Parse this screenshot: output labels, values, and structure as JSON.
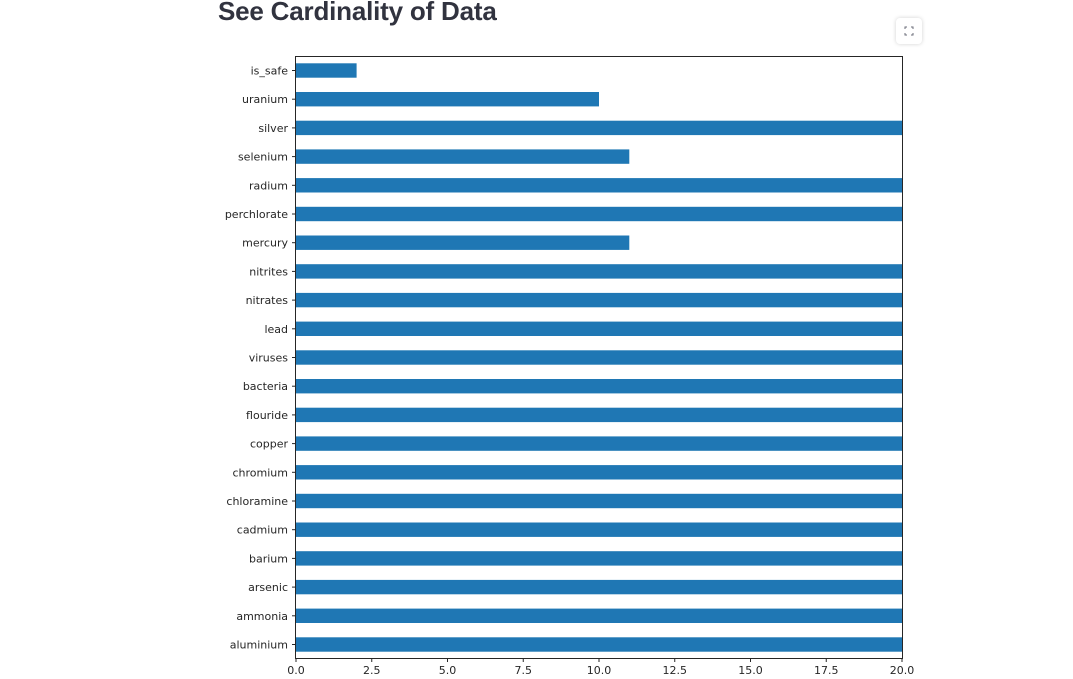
{
  "header": {
    "title": "See Cardinality of Data"
  },
  "toolbar": {
    "fullscreen_icon": "fullscreen-expand-icon"
  },
  "chart_data": {
    "type": "bar",
    "orientation": "horizontal",
    "categories": [
      "aluminium",
      "ammonia",
      "arsenic",
      "barium",
      "cadmium",
      "chloramine",
      "chromium",
      "copper",
      "flouride",
      "bacteria",
      "viruses",
      "lead",
      "nitrates",
      "nitrites",
      "mercury",
      "perchlorate",
      "radium",
      "selenium",
      "silver",
      "uranium",
      "is_safe"
    ],
    "values": [
      20,
      20,
      20,
      20,
      20,
      20,
      20,
      20,
      20,
      20,
      20,
      20,
      20,
      20,
      11,
      20,
      20,
      11,
      20,
      10,
      2
    ],
    "title": "",
    "xlabel": "",
    "ylabel": "",
    "xlim": [
      0,
      20
    ],
    "x_ticks": [
      "0.0",
      "2.5",
      "5.0",
      "7.5",
      "10.0",
      "12.5",
      "15.0",
      "17.5",
      "20.0"
    ],
    "bar_color": "#1f77b4",
    "grid": false
  }
}
